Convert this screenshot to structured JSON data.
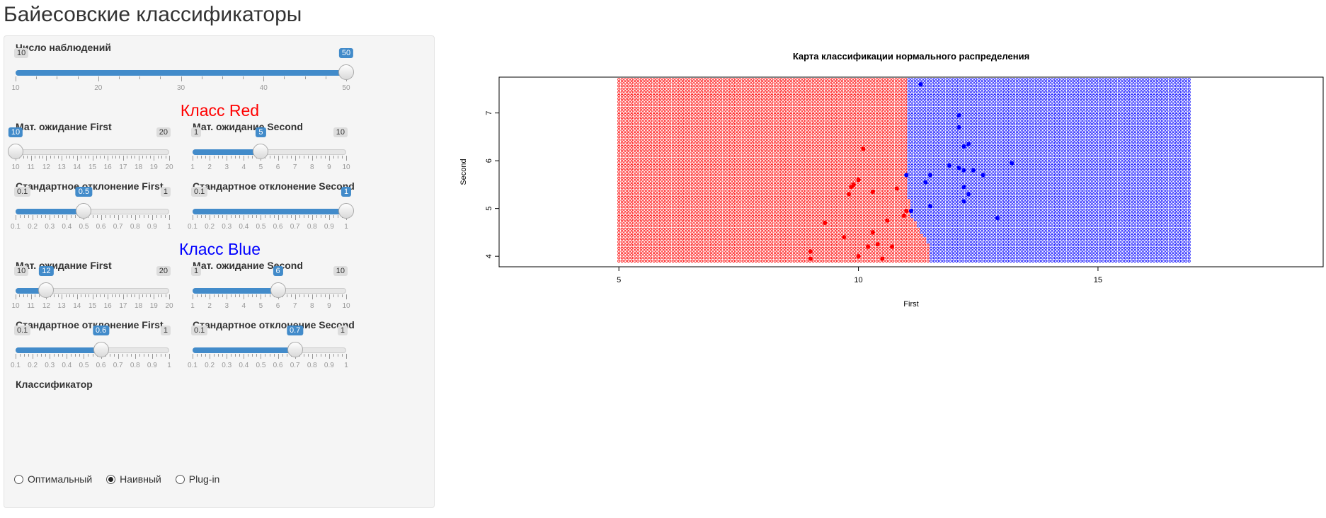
{
  "page": {
    "title": "Байесовские классификаторы"
  },
  "controls": {
    "n_obs": {
      "label": "Число наблюдений",
      "min": 10,
      "max": 50,
      "value": 50,
      "min_text": "10",
      "max_text": "50",
      "value_text": "50",
      "tick_labels": [
        "10",
        "20",
        "30",
        "40",
        "50"
      ]
    },
    "red": {
      "header": "Класс Red",
      "header_color": "#ff0000",
      "mean_first": {
        "label": "Мат. ожидание First",
        "min": 10,
        "max": 20,
        "value": 10,
        "min_text": "10",
        "max_text": "20",
        "value_text": "10",
        "tick_labels": [
          "10",
          "11",
          "12",
          "13",
          "14",
          "15",
          "16",
          "17",
          "18",
          "19",
          "20"
        ]
      },
      "mean_second": {
        "label": "Мат. ожидание Second",
        "min": 1,
        "max": 10,
        "value": 5,
        "min_text": "1",
        "max_text": "10",
        "value_text": "5",
        "tick_labels": [
          "1",
          "2",
          "3",
          "4",
          "5",
          "6",
          "7",
          "8",
          "9",
          "10"
        ]
      },
      "sd_first": {
        "label": "Стандартное отклонение First",
        "min": 0.1,
        "max": 1,
        "value": 0.5,
        "min_text": "0.1",
        "max_text": "1",
        "value_text": "0.5",
        "tick_labels": [
          "0.1",
          "0.2",
          "0.3",
          "0.4",
          "0.5",
          "0.6",
          "0.7",
          "0.8",
          "0.9",
          "1"
        ]
      },
      "sd_second": {
        "label": "Стандартное отклонение Second",
        "min": 0.1,
        "max": 1,
        "value": 1,
        "min_text": "0.1",
        "max_text": "1",
        "value_text": "1",
        "tick_labels": [
          "0.1",
          "0.2",
          "0.3",
          "0.4",
          "0.5",
          "0.6",
          "0.7",
          "0.8",
          "0.9",
          "1"
        ]
      }
    },
    "blue": {
      "header": "Класс Blue",
      "header_color": "#0000ff",
      "mean_first": {
        "label": "Мат. ожидание First",
        "min": 10,
        "max": 20,
        "value": 12,
        "min_text": "10",
        "max_text": "20",
        "value_text": "12",
        "tick_labels": [
          "10",
          "11",
          "12",
          "13",
          "14",
          "15",
          "16",
          "17",
          "18",
          "19",
          "20"
        ]
      },
      "mean_second": {
        "label": "Мат. ожидание Second",
        "min": 1,
        "max": 10,
        "value": 6,
        "min_text": "1",
        "max_text": "10",
        "value_text": "6",
        "tick_labels": [
          "1",
          "2",
          "3",
          "4",
          "5",
          "6",
          "7",
          "8",
          "9",
          "10"
        ]
      },
      "sd_first": {
        "label": "Стандартное отклонение First",
        "min": 0.1,
        "max": 1,
        "value": 0.6,
        "min_text": "0.1",
        "max_text": "1",
        "value_text": "0.6",
        "tick_labels": [
          "0.1",
          "0.2",
          "0.3",
          "0.4",
          "0.5",
          "0.6",
          "0.7",
          "0.8",
          "0.9",
          "1"
        ]
      },
      "sd_second": {
        "label": "Стандартное отклонение Second",
        "min": 0.1,
        "max": 1,
        "value": 0.7,
        "min_text": "0.1",
        "max_text": "1",
        "value_text": "0.7",
        "tick_labels": [
          "0.1",
          "0.2",
          "0.3",
          "0.4",
          "0.5",
          "0.6",
          "0.7",
          "0.8",
          "0.9",
          "1"
        ]
      }
    },
    "classifier": {
      "label": "Классификатор",
      "options": [
        "Оптимальный",
        "Наивный",
        "Plug-in"
      ],
      "selected": "Наивный"
    }
  },
  "accent_color": "#428bca",
  "chart_data": {
    "type": "scatter",
    "title": "Карта классификации нормального распределения",
    "xlabel": "First",
    "ylabel": "Second",
    "xlim": [
      2.5,
      19.7
    ],
    "ylim": [
      3.78,
      7.75
    ],
    "x_ticks": [
      5,
      10,
      15
    ],
    "y_ticks": [
      4,
      5,
      6,
      7
    ],
    "grid": false,
    "classification_map": {
      "x_range": [
        5,
        16.9
      ],
      "y_range": [
        3.9,
        7.75
      ],
      "boundary": [
        [
          3.9,
          11.5
        ],
        [
          4.2,
          11.5
        ],
        [
          4.5,
          11.3
        ],
        [
          4.85,
          11.1
        ],
        [
          5.2,
          11.05
        ],
        [
          5.6,
          11.0
        ],
        [
          6.0,
          11.0
        ],
        [
          7.75,
          11.0
        ]
      ],
      "left_class": "Red",
      "right_class": "Blue"
    },
    "series": [
      {
        "name": "Red",
        "color": "#ff0000",
        "points": [
          [
            9.9,
            5.5
          ],
          [
            10.0,
            5.6
          ],
          [
            9.8,
            5.3
          ],
          [
            10.3,
            5.35
          ],
          [
            10.1,
            6.25
          ],
          [
            9.3,
            4.7
          ],
          [
            9.0,
            4.1
          ],
          [
            9.0,
            3.95
          ],
          [
            10.7,
            4.2
          ],
          [
            10.3,
            4.5
          ],
          [
            10.6,
            4.75
          ],
          [
            10.8,
            5.42
          ],
          [
            11.0,
            4.95
          ],
          [
            10.2,
            4.2
          ],
          [
            10.0,
            4.0
          ],
          [
            10.4,
            4.25
          ],
          [
            10.95,
            4.85
          ],
          [
            9.85,
            5.45
          ],
          [
            10.5,
            3.95
          ],
          [
            9.7,
            4.4
          ]
        ]
      },
      {
        "name": "Blue",
        "color": "#0000ff",
        "points": [
          [
            11.3,
            7.6
          ],
          [
            12.1,
            6.95
          ],
          [
            12.1,
            6.7
          ],
          [
            12.2,
            6.3
          ],
          [
            12.3,
            6.35
          ],
          [
            13.2,
            5.95
          ],
          [
            11.0,
            5.7
          ],
          [
            11.5,
            5.7
          ],
          [
            11.4,
            5.55
          ],
          [
            12.1,
            5.85
          ],
          [
            12.2,
            5.8
          ],
          [
            12.4,
            5.8
          ],
          [
            12.6,
            5.7
          ],
          [
            11.9,
            5.9
          ],
          [
            12.2,
            5.45
          ],
          [
            12.3,
            5.3
          ],
          [
            12.2,
            5.15
          ],
          [
            11.5,
            5.05
          ],
          [
            12.9,
            4.8
          ],
          [
            11.1,
            4.95
          ]
        ]
      }
    ]
  }
}
